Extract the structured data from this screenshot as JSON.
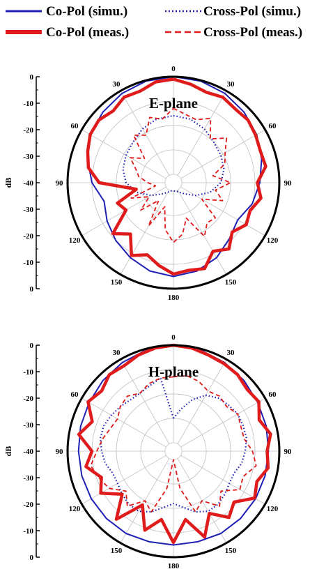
{
  "legend": [
    {
      "label": "Co-Pol (simu.)",
      "color": "#1f1fb4",
      "style": "solid-thin"
    },
    {
      "label": "Cross-Pol (simu.)",
      "color": "#1f1fb4",
      "style": "dotted"
    },
    {
      "label": "Co-Pol (meas.)",
      "color": "#e01b1b",
      "style": "solid-thick"
    },
    {
      "label": "Cross-Pol (meas.)",
      "color": "#e01b1b",
      "style": "dashed"
    }
  ],
  "colors": {
    "blue": "#1f1fb4",
    "red": "#e01b1b",
    "grid": "#bfbfbf"
  },
  "chart_data": [
    {
      "type": "polar",
      "title": "E-plane",
      "ylabel": "dB",
      "rlim": [
        -40,
        0
      ],
      "radial_ticks": [
        "0",
        "-10",
        "-20",
        "-30",
        "-40",
        "-30",
        "-20",
        "-10",
        "0"
      ],
      "angle_labels": [
        "0",
        "30",
        "60",
        "90",
        "120",
        "150",
        "180",
        "150",
        "120",
        "90",
        "60",
        "30"
      ],
      "grid": true,
      "series": [
        {
          "name": "Co-Pol (simu.)",
          "theta": [
            0,
            15,
            30,
            45,
            60,
            75,
            90,
            105,
            120,
            135,
            150,
            165,
            180,
            195,
            210,
            225,
            240,
            255,
            270,
            285,
            300,
            315,
            330,
            345,
            360
          ],
          "r": [
            0,
            -0.3,
            -1.2,
            -2.5,
            -4,
            -6,
            -8,
            -10,
            -13,
            -11,
            -8,
            -6,
            -5,
            -6,
            -8,
            -10,
            -12,
            -14,
            -10,
            -7,
            -4,
            -2.5,
            -1.2,
            -0.3,
            0
          ]
        },
        {
          "name": "Cross-Pol (simu.)",
          "theta": [
            0,
            15,
            30,
            45,
            60,
            75,
            90,
            105,
            120,
            135,
            150,
            165,
            180,
            195,
            210,
            225,
            240,
            255,
            270,
            285,
            300,
            315,
            330,
            345,
            360
          ],
          "r": [
            -16,
            -16.5,
            -18,
            -20,
            -21,
            -22,
            -24,
            -28,
            -33,
            -37,
            -39,
            -40,
            -40,
            -40,
            -39,
            -37,
            -33,
            -28,
            -24,
            -22,
            -21,
            -20,
            -18,
            -16.5,
            -16
          ]
        },
        {
          "name": "Co-Pol (meas.)",
          "theta": [
            0,
            10,
            20,
            30,
            40,
            50,
            60,
            70,
            80,
            90,
            100,
            110,
            120,
            130,
            140,
            150,
            160,
            170,
            180,
            190,
            200,
            210,
            220,
            230,
            240,
            250,
            260,
            270,
            280,
            290,
            300,
            310,
            320,
            330,
            340,
            350,
            360
          ],
          "r": [
            -1,
            -2.5,
            -4,
            -3,
            -4,
            -3.5,
            -4.5,
            -5.5,
            -5,
            -9,
            -7,
            -10,
            -9,
            -12,
            -8,
            -11,
            -6,
            -7,
            -6,
            -9,
            -12,
            -9,
            -16,
            -11,
            -21,
            -19,
            -28,
            -13,
            -8,
            -6,
            -4,
            -3.5,
            -5,
            -3,
            -3.5,
            -1.5,
            -1
          ]
        },
        {
          "name": "Cross-Pol (meas.)",
          "theta": [
            0,
            10,
            20,
            30,
            40,
            50,
            60,
            70,
            80,
            90,
            100,
            110,
            120,
            130,
            140,
            150,
            160,
            170,
            180,
            190,
            200,
            210,
            220,
            230,
            240,
            250,
            260,
            270,
            280,
            290,
            300,
            310,
            320,
            330,
            340,
            350,
            360
          ],
          "r": [
            -13,
            -15,
            -16,
            -13,
            -20,
            -15,
            -19,
            -21,
            -27,
            -20,
            -26,
            -22,
            -30,
            -21,
            -22,
            -18,
            -28,
            -22,
            -19,
            -24,
            -33,
            -23,
            -34,
            -26,
            -32,
            -25,
            -36,
            -33,
            -29,
            -27,
            -23,
            -28,
            -18,
            -21,
            -15,
            -17,
            -13
          ]
        }
      ]
    },
    {
      "type": "polar",
      "title": "H-plane",
      "ylabel": "dB",
      "rlim": [
        -40,
        0
      ],
      "radial_ticks": [
        "0",
        "-10",
        "-20",
        "-30",
        "-40",
        "-30",
        "-20",
        "-10",
        "0"
      ],
      "angle_labels": [
        "0",
        "30",
        "60",
        "90",
        "120",
        "150",
        "180",
        "150",
        "120",
        "90",
        "60",
        "30"
      ],
      "grid": true,
      "series": [
        {
          "name": "Co-Pol (simu.)",
          "theta": [
            0,
            15,
            30,
            45,
            60,
            75,
            90,
            105,
            120,
            135,
            150,
            165,
            180,
            195,
            210,
            225,
            240,
            255,
            270,
            285,
            300,
            315,
            330,
            345,
            360
          ],
          "r": [
            0,
            -0.5,
            -1.5,
            -2.5,
            -3.5,
            -4,
            -4.5,
            -4.5,
            -4.5,
            -4.5,
            -4.5,
            -5,
            -5,
            -5,
            -4.5,
            -4.5,
            -4.5,
            -4.5,
            -4.5,
            -4,
            -3.5,
            -2.5,
            -1.5,
            -0.5,
            0
          ]
        },
        {
          "name": "Cross-Pol (simu.)",
          "theta": [
            0,
            10,
            20,
            30,
            40,
            50,
            60,
            70,
            80,
            90,
            100,
            110,
            120,
            130,
            140,
            150,
            160,
            170,
            180,
            190,
            200,
            210,
            220,
            230,
            240,
            250,
            260,
            270,
            280,
            290,
            300,
            310,
            320,
            330,
            340,
            350,
            360
          ],
          "r": [
            -30,
            -26,
            -21,
            -17,
            -15,
            -14,
            -13,
            -13,
            -13,
            -14,
            -15,
            -17,
            -17,
            -16,
            -15,
            -15,
            -17,
            -20,
            -22,
            -20,
            -17,
            -15,
            -15,
            -16,
            -17,
            -17,
            -15,
            -14,
            -13,
            -13,
            -14,
            -15,
            -16,
            -16,
            -15,
            -13,
            -30
          ]
        },
        {
          "name": "Co-Pol (meas.)",
          "theta": [
            0,
            10,
            20,
            30,
            40,
            50,
            60,
            70,
            80,
            90,
            100,
            110,
            120,
            130,
            140,
            150,
            160,
            170,
            180,
            190,
            200,
            210,
            220,
            230,
            240,
            250,
            260,
            270,
            280,
            290,
            300,
            310,
            320,
            330,
            340,
            350,
            360
          ],
          "r": [
            0,
            -0.5,
            -1.5,
            -2,
            -2.5,
            -4,
            -3,
            -6,
            -3,
            -5,
            -4,
            -7,
            -5,
            -11,
            -8,
            -14,
            -6,
            -15,
            -6,
            -15,
            -9,
            -18,
            -7,
            -16,
            -9,
            -12,
            -7,
            -10,
            -4,
            -8,
            -3,
            -5,
            -2.5,
            -3,
            -1.5,
            -0.5,
            0
          ]
        },
        {
          "name": "Cross-Pol (meas.)",
          "theta": [
            0,
            10,
            20,
            30,
            40,
            50,
            60,
            70,
            80,
            90,
            100,
            110,
            120,
            130,
            140,
            150,
            160,
            170,
            180,
            190,
            200,
            210,
            220,
            230,
            240,
            250,
            260,
            270,
            280,
            290,
            300,
            310,
            320,
            330,
            340,
            350,
            360
          ],
          "r": [
            -13,
            -12,
            -13,
            -15,
            -14,
            -15,
            -13,
            -14,
            -14,
            -11,
            -9,
            -13,
            -12,
            -18,
            -14,
            -20,
            -17,
            -28,
            -40,
            -28,
            -17,
            -20,
            -14,
            -18,
            -13,
            -11,
            -9,
            -12,
            -14,
            -16,
            -17,
            -15,
            -14,
            -16,
            -14,
            -13,
            -13
          ]
        }
      ]
    }
  ]
}
